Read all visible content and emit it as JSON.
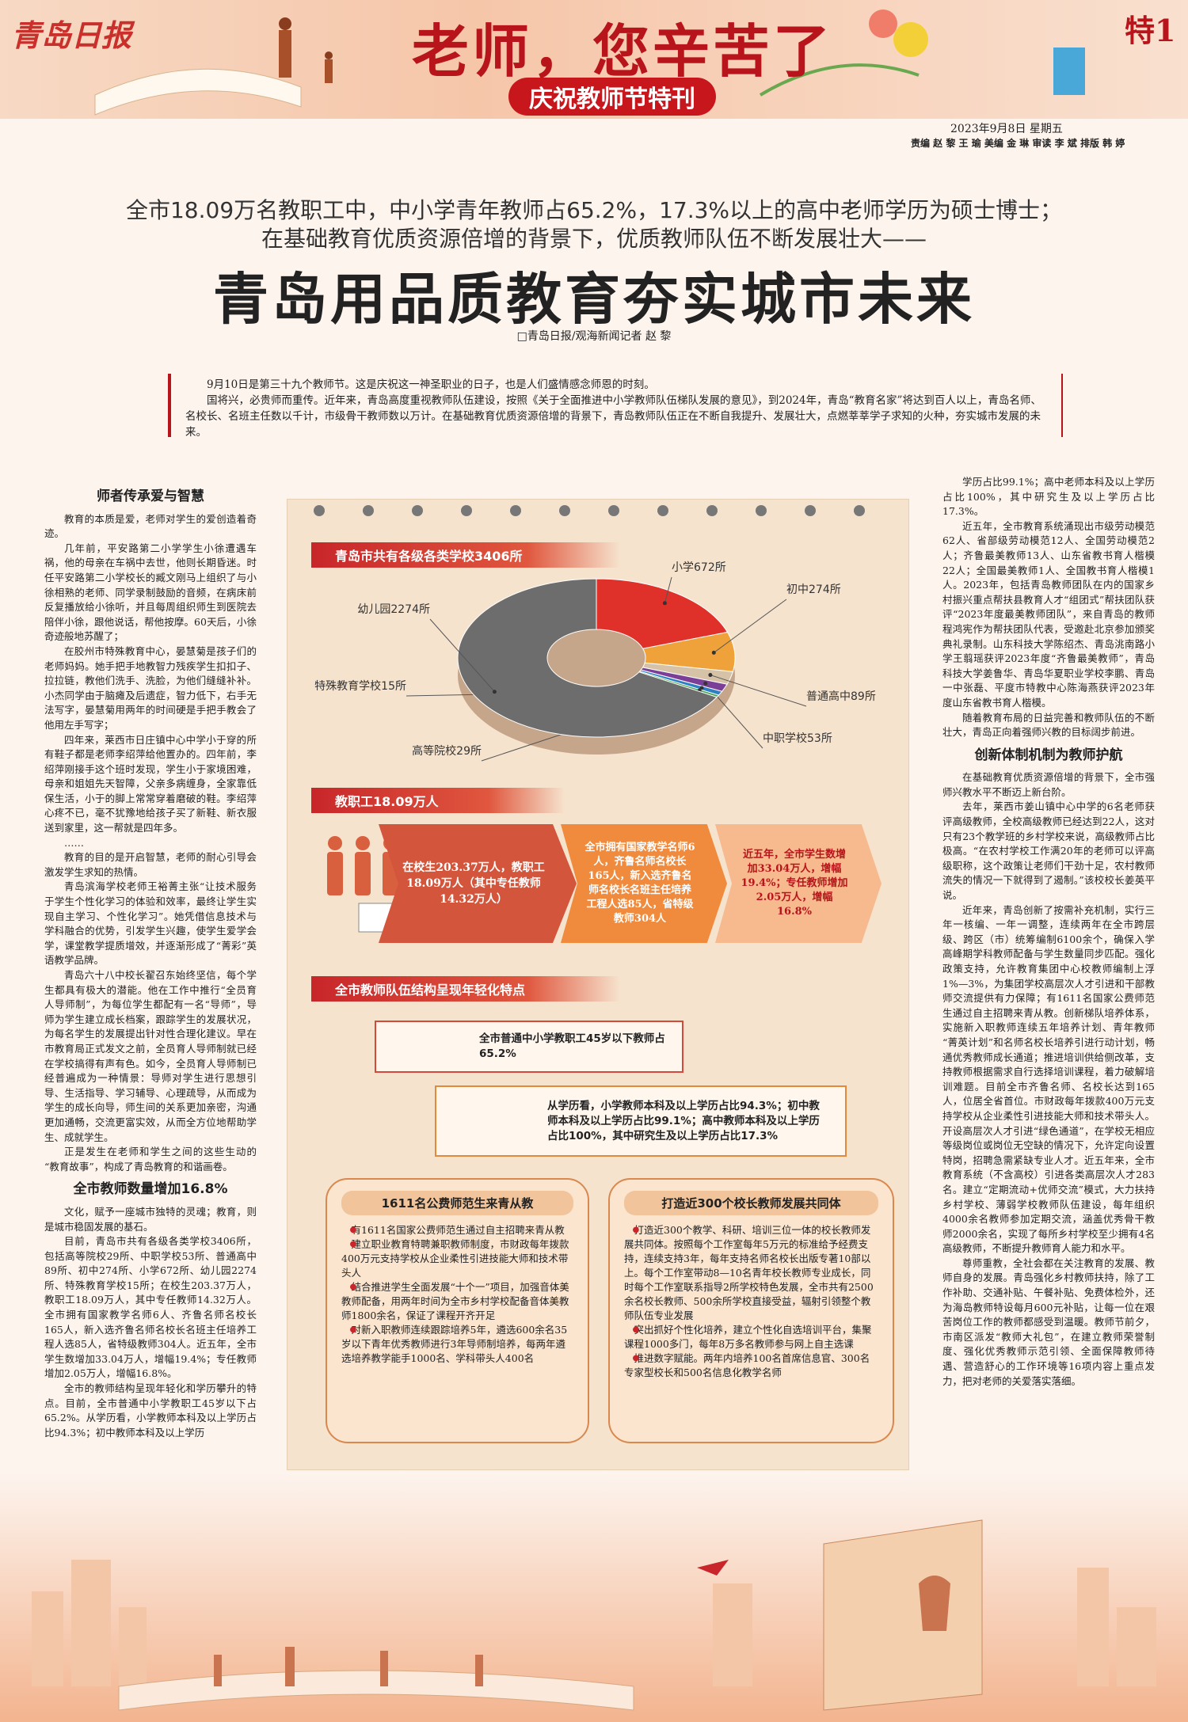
{
  "header": {
    "logo": "青岛日报",
    "title": "老师，您辛苦了",
    "subtitle": "庆祝教师节特刊",
    "page": "特1",
    "date": "2023年9月8日 星期五",
    "staff": "责编 赵 黎 王 瑜  美编 金 琳  审读 李 斌  排版 韩 婷"
  },
  "lead": [
    "全市18.09万名教职工中，中小学青年教师占65.2%，17.3%以上的高中老师学历为硕士博士；",
    "在基础教育优质资源倍增的背景下，优质教师队伍不断发展壮大——"
  ],
  "headline": "青岛用品质教育夯实城市未来",
  "byline": "□青岛日报/观海新闻记者  赵 黎",
  "intro": [
    "9月10日是第三十九个教师节。这是庆祝这一神圣职业的日子，也是人们盛情感念师恩的时刻。",
    "国将兴，必贵师而重传。近年来，青岛高度重视教师队伍建设，按照《关于全面推进中小学教师队伍梯队发展的意见》，到2024年，青岛“教育名家”将达到百人以上，青岛名师、名校长、名班主任数以千计，市级骨干教师数以万计。在基础教育优质资源倍增的背景下，青岛教师队伍正在不断自我提升、发展壮大，点燃莘莘学子求知的火种，夯实城市发展的未来。"
  ],
  "left_column": [
    {
      "heading": "师者传承爱与智慧",
      "paragraphs": [
        "教育的本质是爱，老师对学生的爱创造着奇迹。",
        "几年前，平安路第二小学学生小徐遭遇车祸，他的母亲在车祸中去世，他则长期昏迷。时任平安路第二小学校长的臧文刚马上组织了与小徐相熟的老师、同学录制鼓励的音频，在病床前反复播放给小徐听，并且每周组织师生到医院去陪伴小徐，跟他说话，帮他按摩。60天后，小徐奇迹般地苏醒了；",
        "在胶州市特殊教育中心，晏慧菊是孩子们的老师妈妈。她手把手地教智力残疾学生扣扣子、拉拉链，教他们洗手、洗脸，为他们缝缝补补。小杰同学由于脑瘫及后遗症，智力低下，右手无法写字，晏慧菊用两年的时间硬是手把手教会了他用左手写字；",
        "四年来，莱西市日庄镇中心中学小于穿的所有鞋子都是老师李绍萍给他置办的。四年前，李绍萍刚接手这个班时发现，学生小于家境困难，母亲和姐姐先天智障，父亲多病缠身，全家靠低保生活，小于的脚上常常穿着磨破的鞋。李绍萍心疼不已，毫不犹豫地给孩子买了新鞋、新衣服送到家里，这一帮就是四年多。",
        "……",
        "教育的目的是开启智慧，老师的耐心引导会激发学生求知的热情。",
        "青岛滨海学校老师王裕菁主张“让技术服务于学生个性化学习的体验和效率，最终让学生实现自主学习、个性化学习”。她凭借信息技术与学科融合的优势，引发学生兴趣，使学生爱学会学，课堂教学提质增效，并逐渐形成了“菁彩”英语教学品牌。",
        "青岛六十八中校长翟召东始终坚信，每个学生都具有极大的潜能。他在工作中推行“全员育人导师制”，为每位学生都配有一名“导师”，导师为学生建立成长档案，跟踪学生的发展状况，为每名学生的发展提出针对性合理化建议。早在市教育局正式发文之前，全员育人导师制就已经在学校搞得有声有色。如今，全员育人导师制已经普遍成为一种情景：导师对学生进行思想引导、生活指导、学习辅导、心理疏导，从而成为学生的成长向导，师生间的关系更加亲密，沟通更加通畅，交流更富实效，从而全方位地帮助学生、成就学生。",
        "正是发生在老师和学生之间的这些生动的“教育故事”，构成了青岛教育的和谐画卷。"
      ]
    },
    {
      "heading": "全市教师数量增加16.8%",
      "paragraphs": [
        "文化，赋予一座城市独特的灵魂；教育，则是城市稳固发展的基石。",
        "目前，青岛市共有各级各类学校3406所，包括高等院校29所、中职学校53所、普通高中89所、初中274所、小学672所、幼儿园2274所、特殊教育学校15所；在校生203.37万人，教职工18.09万人，其中专任教师14.32万人。全市拥有国家教学名师6人、齐鲁名师名校长165人，新入选齐鲁名师名校长名班主任培养工程人选85人，省特级教师304人。近五年，全市学生数增加33.04万人，增幅19.4%；专任教师增加2.05万人，增幅16.8%。",
        "全市的教师结构呈现年轻化和学历攀升的特点。目前，全市普通中小学教职工45岁以下占65.2%。从学历看，小学教师本科及以上学历占比94.3%；初中教师本科及以上学历"
      ]
    }
  ],
  "right_column": [
    {
      "paragraphs": [
        "学历占比99.1%；高中老师本科及以上学历占比100%，其中研究生及以上学历占比17.3%。",
        "近五年，全市教育系统涌现出市级劳动模范62人、省部级劳动模范12人、全国劳动模范2人；齐鲁最美教师13人、山东省教书育人楷模22人；全国最美教师1人、全国教书育人楷模1人。2023年，包括青岛教师团队在内的国家乡村振兴重点帮扶县教育人才“组团式”帮扶团队获评“2023年度最美教师团队”，来自青岛的教师程鸿宪作为帮扶团队代表，受邀赴北京参加颁奖典礼录制。山东科技大学陈绍杰、青岛洮南路小学王翦瑶获评2023年度“齐鲁最美教师”，青岛科技大学姜鲁华、青岛华夏职业学校李鹏、青岛一中张磊、平度市特教中心陈海燕获评2023年度山东省教书育人楷模。",
        "随着教育布局的日益完善和教师队伍的不断壮大，青岛正向着强师兴教的目标阔步前进。"
      ]
    },
    {
      "heading": "创新体制机制为教师护航",
      "paragraphs": [
        "在基础教育优质资源倍增的背景下，全市强师兴教水平不断迈上新台阶。",
        "去年，莱西市姜山镇中心中学的6名老师获评高级教师，全校高级教师已经达到22人，这对只有23个教学班的乡村学校来说，高级教师占比极高。“在农村学校工作满20年的老师可以评高级职称，这个政策让老师们干劲十足，农村教师流失的情况一下就得到了遏制。”该校校长姜英平说。",
        "近年来，青岛创新了按需补充机制，实行三年一核编、一年一调整，连续两年在全市跨层级、跨区（市）统筹编制6100余个，确保入学高峰期学科教师配备与学生数量同步匹配。强化政策支持，允许教育集团中心校教师编制上浮1%—3%，为集团学校高层次人才引进和干部教师交流提供有力保障；有1611名国家公费师范生通过自主招聘来青从教。创新梯队培养体系，实施新入职教师连续五年培养计划、青年教师“菁英计划”和名师名校长培养引进行动计划，畅通优秀教师成长通道；推进培训供给侧改革，支持教师根据需求自行选择培训课程，着力破解培训难题。目前全市齐鲁名师、名校长达到165人，位居全省首位。市财政每年拨款400万元支持学校从企业柔性引进技能大师和技术带头人。开设高层次人才引进“绿色通道”，在学校无相应等级岗位或岗位无空缺的情况下，允许定向设置特岗，招聘急需紧缺专业人才。近五年来，全市教育系统（不含高校）引进各类高层次人才283名。建立“定期流动+优师交流”模式，大力扶持乡村学校、薄弱学校教师队伍建设，每年组织4000余名教师参加定期交流，涵盖优秀骨干教师2000余名，实现了每所乡村学校至少拥有4名高级教师，不断提升教师育人能力和水平。",
        "尊师重教，全社会都在关注教育的发展、教师自身的发展。青岛强化乡村教师扶持，除了工作补助、交通补贴、午餐补贴、免费体检外，还为海岛教师特设每月600元补贴，让每一位在艰苦岗位工作的教师都感受到温暖。教师节前夕，市南区派发“教师大礼包”，在建立教师荣誉制度、强化优秀教师示范引领、全面保障教师待遇、营造舒心的工作环境等16项内容上重点发力，把对老师的关爱落实落细。"
      ]
    }
  ],
  "infographic": {
    "chart_data": {
      "type": "pie",
      "title": "青岛市共有各级各类学校3406所",
      "values": [
        672,
        274,
        89,
        53,
        29,
        15,
        2274
      ],
      "value_labels": [
        "小学672所",
        "初中274所",
        "普通高中89所",
        "中职学校53所",
        "高等院校29所",
        "特殊教育学校15所",
        "幼儿园2274所"
      ],
      "colors": [
        "#e0302a",
        "#f0a23a",
        "#d6c2a6",
        "#7b3f98",
        "#2f7fc4",
        "#4aa657",
        "#6d6d6d"
      ]
    },
    "staff_banner": "教职工18.09万人",
    "staff_boxes": [
      "在校生203.37万人，教职工18.09万人（其中专任教师14.32万人）",
      "全市拥有国家教学名师6人，齐鲁名师名校长165人，新入选齐鲁名师名校长名班主任培养工程人选85人，省特级教师304人",
      "近五年，全市学生数增加33.04万人，增幅19.4%；专任教师增加2.05万人，增幅16.8%"
    ],
    "structure_banner": "全市教师队伍结构呈现年轻化特点",
    "structure_items": [
      "全市普通中小学教职工45岁以下教师占65.2%",
      "从学历看，小学教师本科及以上学历占比94.3%；初中教师本科及以上学历占比99.1%；高中教师本科及以上学历占比100%，其中研究生及以上学历占比17.3%"
    ],
    "cards": [
      {
        "heading": "1611名公费师范生来青从教",
        "items": [
          "有1611名国家公费师范生通过自主招聘来青从教",
          "建立职业教育特聘兼职教师制度，市财政每年拨款400万元支持学校从企业柔性引进技能大师和技术带头人",
          "结合推进学生全面发展“十个一”项目，加强音体美教师配备，用两年时间为全市乡村学校配备音体美教师1800余名，保证了课程开齐开足",
          "对新入职教师连续跟踪培养5年，遴选600余名35岁以下青年优秀教师进行3年导师制培养，每两年遴选培养教学能手1000名、学科带头人400名"
        ]
      },
      {
        "heading": "打造近300个校长教师发展共同体",
        "items": [
          "打造近300个教学、科研、培训三位一体的校长教师发展共同体。按照每个工作室每年5万元的标准给予经费支持，连续支持3年，每年支持名师名校长出版专著10部以上。每个工作室带动8—10名青年校长教师专业成长，同时每个工作室联系指导2所学校特色发展，全市共有2500余名校长教师、500余所学校直接受益，辐射引领整个教师队伍专业发展",
          "突出抓好个性化培养，建立个性化自选培训平台，集聚课程1000多门，每年8万多名教师参与网上自主选课",
          "推进数字赋能。两年内培养100名首席信息官、300名专家型校长和500名信息化教学名师"
        ]
      }
    ]
  }
}
